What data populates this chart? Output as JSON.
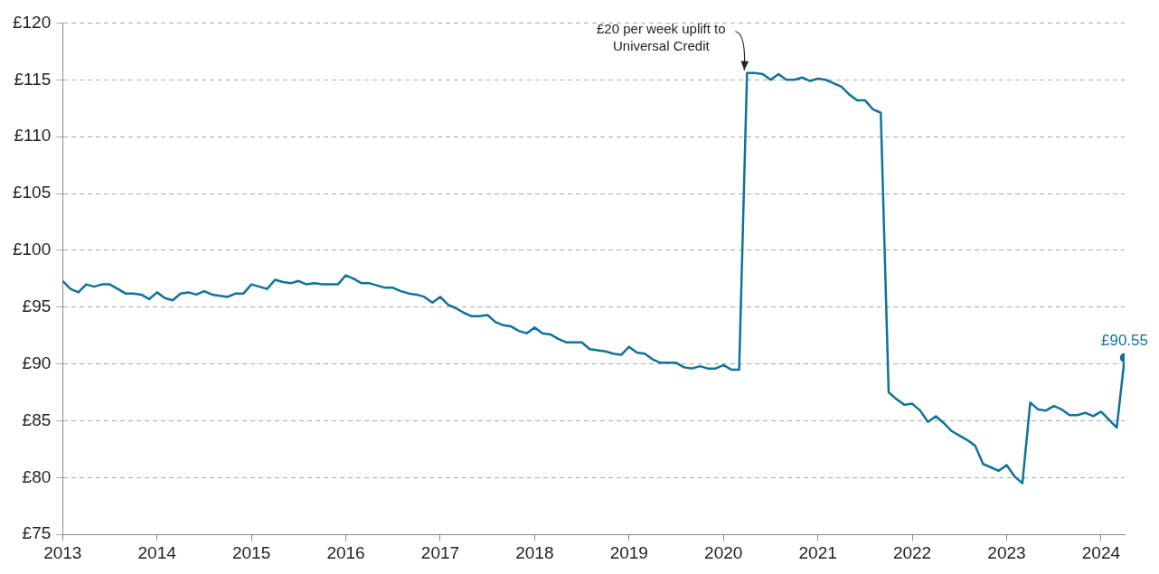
{
  "chart_data": {
    "type": "line",
    "x": [
      "2013-01",
      "2013-02",
      "2013-03",
      "2013-04",
      "2013-05",
      "2013-06",
      "2013-07",
      "2013-08",
      "2013-09",
      "2013-10",
      "2013-11",
      "2013-12",
      "2014-01",
      "2014-02",
      "2014-03",
      "2014-04",
      "2014-05",
      "2014-06",
      "2014-07",
      "2014-08",
      "2014-09",
      "2014-10",
      "2014-11",
      "2014-12",
      "2015-01",
      "2015-02",
      "2015-03",
      "2015-04",
      "2015-05",
      "2015-06",
      "2015-07",
      "2015-08",
      "2015-09",
      "2015-10",
      "2015-11",
      "2015-12",
      "2016-01",
      "2016-02",
      "2016-03",
      "2016-04",
      "2016-05",
      "2016-06",
      "2016-07",
      "2016-08",
      "2016-09",
      "2016-10",
      "2016-11",
      "2016-12",
      "2017-01",
      "2017-02",
      "2017-03",
      "2017-04",
      "2017-05",
      "2017-06",
      "2017-07",
      "2017-08",
      "2017-09",
      "2017-10",
      "2017-11",
      "2017-12",
      "2018-01",
      "2018-02",
      "2018-03",
      "2018-04",
      "2018-05",
      "2018-06",
      "2018-07",
      "2018-08",
      "2018-09",
      "2018-10",
      "2018-11",
      "2018-12",
      "2019-01",
      "2019-02",
      "2019-03",
      "2019-04",
      "2019-05",
      "2019-06",
      "2019-07",
      "2019-08",
      "2019-09",
      "2019-10",
      "2019-11",
      "2019-12",
      "2020-01",
      "2020-02",
      "2020-03",
      "2020-04",
      "2020-05",
      "2020-06",
      "2020-07",
      "2020-08",
      "2020-09",
      "2020-10",
      "2020-11",
      "2020-12",
      "2021-01",
      "2021-02",
      "2021-03",
      "2021-04",
      "2021-05",
      "2021-06",
      "2021-07",
      "2021-08",
      "2021-09",
      "2021-10",
      "2021-11",
      "2021-12",
      "2022-01",
      "2022-02",
      "2022-03",
      "2022-04",
      "2022-05",
      "2022-06",
      "2022-07",
      "2022-08",
      "2022-09",
      "2022-10",
      "2022-11",
      "2022-12",
      "2023-01",
      "2023-02",
      "2023-03",
      "2023-04",
      "2023-05",
      "2023-06",
      "2023-07",
      "2023-08",
      "2023-09",
      "2023-10",
      "2023-11",
      "2023-12",
      "2024-01",
      "2024-02",
      "2024-03",
      "2024-04"
    ],
    "series": [
      {
        "color": "#0e7399",
        "values": [
          97.3,
          96.6,
          96.3,
          97.0,
          96.8,
          97.0,
          97.0,
          96.6,
          96.2,
          96.2,
          96.1,
          95.7,
          96.3,
          95.8,
          95.6,
          96.2,
          96.3,
          96.1,
          96.4,
          96.1,
          96.0,
          95.9,
          96.2,
          96.2,
          97.0,
          96.8,
          96.6,
          97.4,
          97.2,
          97.1,
          97.3,
          97.0,
          97.1,
          97.0,
          97.0,
          97.0,
          97.8,
          97.5,
          97.1,
          97.1,
          96.9,
          96.7,
          96.7,
          96.4,
          96.2,
          96.1,
          95.9,
          95.4,
          95.9,
          95.2,
          94.9,
          94.5,
          94.2,
          94.2,
          94.3,
          93.7,
          93.4,
          93.3,
          92.9,
          92.7,
          93.2,
          92.7,
          92.6,
          92.2,
          91.9,
          91.9,
          91.9,
          91.3,
          91.2,
          91.1,
          90.9,
          90.8,
          91.5,
          91.0,
          90.9,
          90.4,
          90.1,
          90.1,
          90.1,
          89.7,
          89.6,
          89.8,
          89.6,
          89.6,
          89.9,
          89.5,
          89.5,
          115.6,
          115.6,
          115.5,
          115.0,
          115.5,
          115.0,
          115.0,
          115.2,
          114.9,
          115.1,
          115.0,
          114.7,
          114.4,
          113.7,
          113.2,
          113.2,
          112.4,
          112.1,
          87.5,
          86.9,
          86.4,
          86.5,
          85.9,
          84.9,
          85.4,
          84.8,
          84.1,
          83.7,
          83.3,
          82.8,
          81.2,
          80.9,
          80.6,
          81.1,
          80.1,
          79.5,
          86.6,
          86.0,
          85.9,
          86.3,
          86.0,
          85.5,
          85.5,
          85.7,
          85.4,
          85.8,
          85.1,
          84.4,
          90.55
        ],
        "value_labels": [
          null,
          null,
          null,
          null,
          null,
          null,
          null,
          null,
          null,
          null,
          null,
          null,
          null,
          null,
          null,
          null,
          null,
          null,
          null,
          null,
          null,
          null,
          null,
          null,
          null,
          null,
          null,
          null,
          null,
          null,
          null,
          null,
          null,
          null,
          null,
          null,
          null,
          null,
          null,
          null,
          null,
          null,
          null,
          null,
          null,
          null,
          null,
          null,
          null,
          null,
          null,
          null,
          null,
          null,
          null,
          null,
          null,
          null,
          null,
          null,
          null,
          null,
          null,
          null,
          null,
          null,
          null,
          null,
          null,
          null,
          null,
          null,
          null,
          null,
          null,
          null,
          null,
          null,
          null,
          null,
          null,
          null,
          null,
          null,
          null,
          null,
          null,
          null,
          null,
          null,
          null,
          null,
          null,
          null,
          null,
          null,
          null,
          null,
          null,
          null,
          null,
          null,
          null,
          null,
          null,
          null,
          null,
          null,
          null,
          null,
          null,
          null,
          null,
          null,
          null,
          null,
          null,
          null,
          null,
          null,
          null,
          null,
          null,
          null,
          null,
          null,
          null,
          null,
          null,
          null,
          null,
          null,
          null,
          null,
          null,
          "£90.55"
        ]
      }
    ],
    "xlim": [
      "2013-01",
      "2024-04"
    ],
    "xticks": [
      {
        "value": "2013",
        "label": "2013"
      },
      {
        "value": "2014",
        "label": "2014"
      },
      {
        "value": "2015",
        "label": "2015"
      },
      {
        "value": "2016",
        "label": "2016"
      },
      {
        "value": "2017",
        "label": "2017"
      },
      {
        "value": "2018",
        "label": "2018"
      },
      {
        "value": "2019",
        "label": "2019"
      },
      {
        "value": "2020",
        "label": "2020"
      },
      {
        "value": "2021",
        "label": "2021"
      },
      {
        "value": "2022",
        "label": "2022"
      },
      {
        "value": "2023",
        "label": "2023"
      },
      {
        "value": "2024",
        "label": "2024"
      }
    ],
    "ylim": [
      75,
      120
    ],
    "yticks": [
      {
        "value": 75,
        "label": "£75"
      },
      {
        "value": 80,
        "label": "£80"
      },
      {
        "value": 85,
        "label": "£85"
      },
      {
        "value": 90,
        "label": "£90"
      },
      {
        "value": 95,
        "label": "£95"
      },
      {
        "value": 100,
        "label": "£100"
      },
      {
        "value": 105,
        "label": "£105"
      },
      {
        "value": 110,
        "label": "£110"
      },
      {
        "value": 115,
        "label": "£115"
      },
      {
        "value": 120,
        "label": "£120"
      }
    ],
    "grid": "y",
    "legend": false,
    "annotations": [
      {
        "text": "£20 per week uplift to\nUniversal Credit",
        "x": "2020-04",
        "y": 115.6
      }
    ]
  }
}
